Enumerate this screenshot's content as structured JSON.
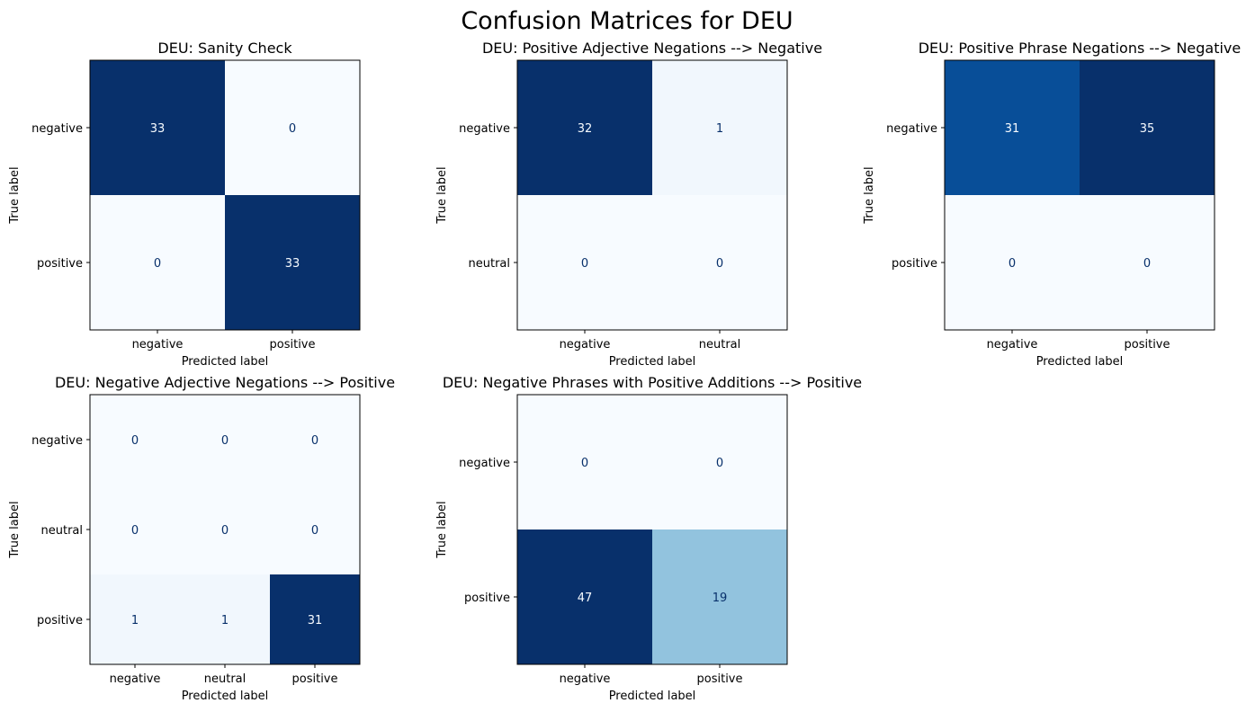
{
  "figure": {
    "title": "Confusion Matrices for DEU"
  },
  "chart_data": [
    {
      "type": "heatmap",
      "title": "DEU: Sanity Check",
      "xlabel": "Predicted label",
      "ylabel": "True label",
      "x_labels": [
        "negative",
        "positive"
      ],
      "y_labels": [
        "negative",
        "positive"
      ],
      "matrix": [
        [
          33,
          0
        ],
        [
          0,
          33
        ]
      ],
      "colormap": "Blues",
      "vmax": 33,
      "colorbar": false
    },
    {
      "type": "heatmap",
      "title": "DEU: Positive Adjective Negations --> Negative",
      "xlabel": "Predicted label",
      "ylabel": "True label",
      "x_labels": [
        "negative",
        "neutral"
      ],
      "y_labels": [
        "negative",
        "neutral"
      ],
      "matrix": [
        [
          32,
          1
        ],
        [
          0,
          0
        ]
      ],
      "colormap": "Blues",
      "vmax": 32,
      "colorbar": false
    },
    {
      "type": "heatmap",
      "title": "DEU: Positive Phrase Negations --> Negative",
      "xlabel": "Predicted label",
      "ylabel": "True label",
      "x_labels": [
        "negative",
        "positive"
      ],
      "y_labels": [
        "negative",
        "positive"
      ],
      "matrix": [
        [
          31,
          35
        ],
        [
          0,
          0
        ]
      ],
      "colormap": "Blues",
      "vmax": 35,
      "colorbar": false
    },
    {
      "type": "heatmap",
      "title": "DEU: Negative Adjective Negations --> Positive",
      "xlabel": "Predicted label",
      "ylabel": "True label",
      "x_labels": [
        "negative",
        "neutral",
        "positive"
      ],
      "y_labels": [
        "negative",
        "neutral",
        "positive"
      ],
      "matrix": [
        [
          0,
          0,
          0
        ],
        [
          0,
          0,
          0
        ],
        [
          1,
          1,
          31
        ]
      ],
      "colormap": "Blues",
      "vmax": 31,
      "colorbar": false
    },
    {
      "type": "heatmap",
      "title": "DEU: Negative Phrases with Positive Additions --> Positive",
      "xlabel": "Predicted label",
      "ylabel": "True label",
      "x_labels": [
        "negative",
        "positive"
      ],
      "y_labels": [
        "negative",
        "positive"
      ],
      "matrix": [
        [
          0,
          0
        ],
        [
          47,
          19
        ]
      ],
      "colormap": "Blues",
      "vmax": 47,
      "colorbar": false
    }
  ]
}
